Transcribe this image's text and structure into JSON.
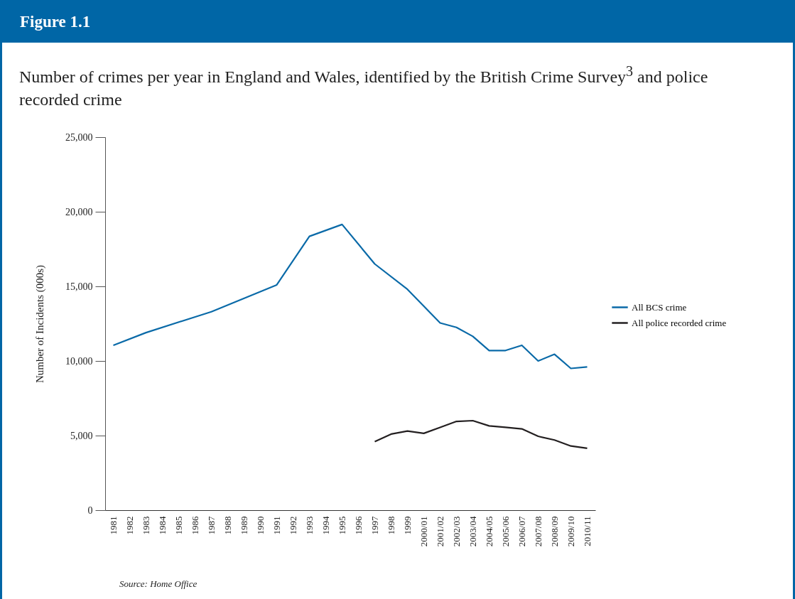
{
  "chart_data": {
    "type": "line",
    "title": "Figure 1.1",
    "subtitle": "Number of crimes per year in England and Wales, identified by the British Crime Survey$^{3}$ and police recorded crime",
    "ylabel": "Number of Incidents (000s)",
    "categories": [
      "1981",
      "1982",
      "1983",
      "1984",
      "1985",
      "1986",
      "1987",
      "1988",
      "1989",
      "1990",
      "1991",
      "1992",
      "1993",
      "1994",
      "1995",
      "1996",
      "1997",
      "1998",
      "1999",
      "2000/01",
      "2001/02",
      "2002/03",
      "2003/04",
      "2004/05",
      "2005/06",
      "2006/07",
      "2007/08",
      "2008/09",
      "2009/10",
      "2010/11"
    ],
    "series": [
      {
        "name": "All BCS crime",
        "color": "#0a6aa8",
        "values": [
          11050,
          null,
          11900,
          null,
          null,
          null,
          13300,
          null,
          null,
          null,
          15100,
          null,
          18350,
          null,
          19150,
          null,
          16500,
          null,
          14800,
          null,
          12550,
          12250,
          11650,
          10700,
          10700,
          11050,
          10000,
          10450,
          9500,
          9600
        ]
      },
      {
        "name": "All police recorded crime",
        "color": "#231f20",
        "values": [
          null,
          null,
          null,
          null,
          null,
          null,
          null,
          null,
          null,
          null,
          null,
          null,
          null,
          null,
          null,
          null,
          4600,
          5100,
          5300,
          5150,
          5550,
          5950,
          6000,
          5650,
          5550,
          5450,
          4950,
          4700,
          4300,
          4150
        ]
      }
    ],
    "ylim": [
      0,
      25000
    ],
    "yticks": [
      0,
      {
        "value": 5000,
        "label": "5,000"
      },
      {
        "value": 10000,
        "label": "10,000"
      },
      {
        "value": 15000,
        "label": "15,000"
      },
      {
        "value": 20000,
        "label": "20,000"
      },
      {
        "value": 25000,
        "label": "25,000"
      }
    ],
    "grid": false,
    "legend": "right",
    "marker": "none",
    "line_style": "solid",
    "annotations": [
      "Source: Home Office"
    ]
  }
}
